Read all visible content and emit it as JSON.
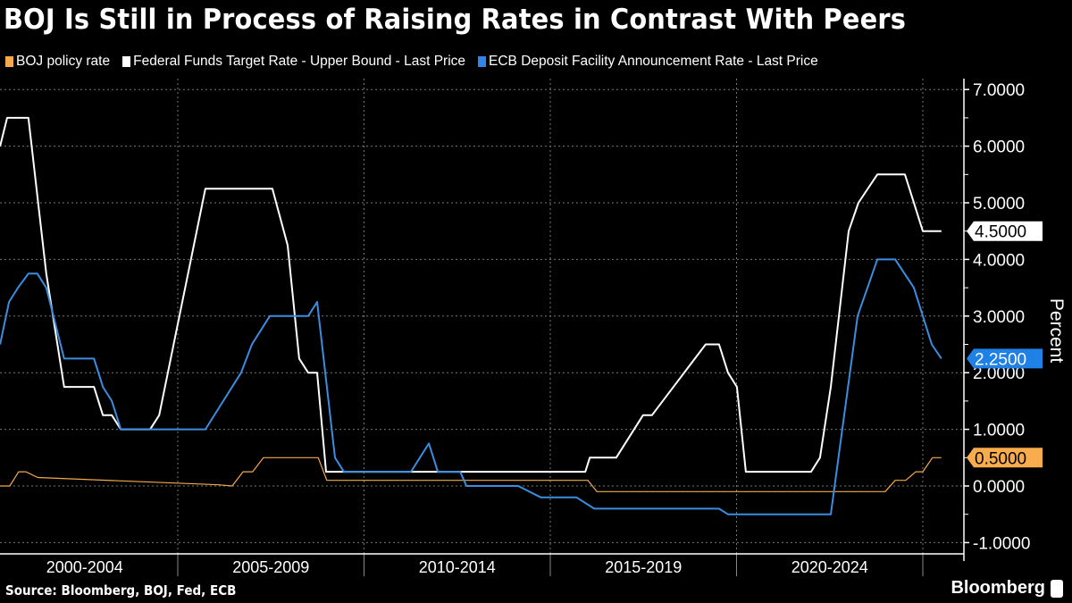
{
  "chart_data": {
    "type": "line",
    "title": "BOJ Is Still in Process of Raising Rates in Contrast With Peers",
    "ylabel": "Percent",
    "xlabel": "",
    "ylim": [
      -1,
      7
    ],
    "xlim": [
      2000.23,
      2025.5
    ],
    "yticks": [
      "7.0000",
      "6.0000",
      "5.0000",
      "4.0000",
      "3.0000",
      "2.0000",
      "1.0000",
      "0.0000",
      "-1.0000"
    ],
    "ytick_values": [
      7,
      6,
      5,
      4,
      3,
      2,
      1,
      0,
      -1
    ],
    "xtick_labels": [
      "2000-2004",
      "2005-2009",
      "2010-2014",
      "2015-2019",
      "2020-2024"
    ],
    "xtick_centers": [
      2002.5,
      2007.5,
      2012.5,
      2017.5,
      2022.5
    ],
    "grid": true,
    "legend_position": "top-left",
    "series": [
      {
        "name": "BOJ policy rate",
        "color": "#f5a94a",
        "last_label": "0.5000",
        "points": [
          [
            2000.23,
            0
          ],
          [
            2000.49,
            0
          ],
          [
            2000.73,
            0.25
          ],
          [
            2000.92,
            0.25
          ],
          [
            2001.24,
            0.15
          ],
          [
            2006.1,
            0.02
          ],
          [
            2006.46,
            0
          ],
          [
            2006.75,
            0.25
          ],
          [
            2007.01,
            0.25
          ],
          [
            2007.3,
            0.5
          ],
          [
            2008.77,
            0.5
          ],
          [
            2009.0,
            0.1
          ],
          [
            2016.01,
            0.1
          ],
          [
            2016.25,
            -0.1
          ],
          [
            2023.99,
            -0.1
          ],
          [
            2024.26,
            0.1
          ],
          [
            2024.54,
            0.1
          ],
          [
            2024.81,
            0.25
          ],
          [
            2025.0,
            0.25
          ],
          [
            2025.26,
            0.5
          ],
          [
            2025.5,
            0.5
          ]
        ]
      },
      {
        "name": "Federal Funds Target Rate - Upper Bound - Last Price",
        "color": "#ffffff",
        "last_label": "4.5000",
        "points": [
          [
            2000.23,
            6.0
          ],
          [
            2000.42,
            6.5
          ],
          [
            2000.99,
            6.5
          ],
          [
            2001.47,
            3.75
          ],
          [
            2001.95,
            1.75
          ],
          [
            2002.75,
            1.75
          ],
          [
            2002.99,
            1.25
          ],
          [
            2003.23,
            1.25
          ],
          [
            2003.47,
            1.0
          ],
          [
            2004.26,
            1.0
          ],
          [
            2004.5,
            1.25
          ],
          [
            2005.74,
            5.25
          ],
          [
            2007.54,
            5.25
          ],
          [
            2007.95,
            4.25
          ],
          [
            2008.26,
            2.25
          ],
          [
            2008.5,
            2.0
          ],
          [
            2008.74,
            2.0
          ],
          [
            2008.98,
            0.25
          ],
          [
            2015.94,
            0.25
          ],
          [
            2016.06,
            0.5
          ],
          [
            2016.77,
            0.5
          ],
          [
            2017.49,
            1.25
          ],
          [
            2017.73,
            1.25
          ],
          [
            2019.17,
            2.5
          ],
          [
            2019.53,
            2.5
          ],
          [
            2019.77,
            2.0
          ],
          [
            2020.01,
            1.75
          ],
          [
            2020.25,
            0.25
          ],
          [
            2022.0,
            0.25
          ],
          [
            2022.24,
            0.5
          ],
          [
            2022.53,
            1.75
          ],
          [
            2023.01,
            4.5
          ],
          [
            2023.27,
            5.0
          ],
          [
            2023.78,
            5.5
          ],
          [
            2024.52,
            5.5
          ],
          [
            2025.0,
            4.5
          ],
          [
            2025.5,
            4.5
          ]
        ]
      },
      {
        "name": "ECB Deposit Facility Announcement Rate - Last Price",
        "color": "#3a8de0",
        "last_label": "2.2500",
        "points": [
          [
            2000.23,
            2.5
          ],
          [
            2000.47,
            3.25
          ],
          [
            2000.71,
            3.5
          ],
          [
            2000.99,
            3.75
          ],
          [
            2001.23,
            3.75
          ],
          [
            2001.47,
            3.5
          ],
          [
            2001.95,
            2.25
          ],
          [
            2002.75,
            2.25
          ],
          [
            2002.99,
            1.75
          ],
          [
            2003.23,
            1.5
          ],
          [
            2003.47,
            1.0
          ],
          [
            2005.74,
            1.0
          ],
          [
            2006.22,
            1.5
          ],
          [
            2006.7,
            2.0
          ],
          [
            2006.99,
            2.5
          ],
          [
            2007.47,
            3.0
          ],
          [
            2008.5,
            3.0
          ],
          [
            2008.74,
            3.25
          ],
          [
            2009.22,
            0.5
          ],
          [
            2009.46,
            0.25
          ],
          [
            2011.26,
            0.25
          ],
          [
            2011.74,
            0.75
          ],
          [
            2011.98,
            0.25
          ],
          [
            2012.58,
            0.25
          ],
          [
            2012.75,
            0.0
          ],
          [
            2014.14,
            0.0
          ],
          [
            2014.74,
            -0.2
          ],
          [
            2015.7,
            -0.2
          ],
          [
            2016.18,
            -0.4
          ],
          [
            2019.53,
            -0.4
          ],
          [
            2019.77,
            -0.5
          ],
          [
            2022.53,
            -0.5
          ],
          [
            2023.25,
            3.0
          ],
          [
            2023.78,
            4.0
          ],
          [
            2024.26,
            4.0
          ],
          [
            2024.76,
            3.5
          ],
          [
            2025.24,
            2.5
          ],
          [
            2025.5,
            2.25
          ]
        ]
      }
    ]
  },
  "footer": {
    "source": "Source: Bloomberg, BOJ, Fed, ECB",
    "brand": "Bloomberg"
  }
}
